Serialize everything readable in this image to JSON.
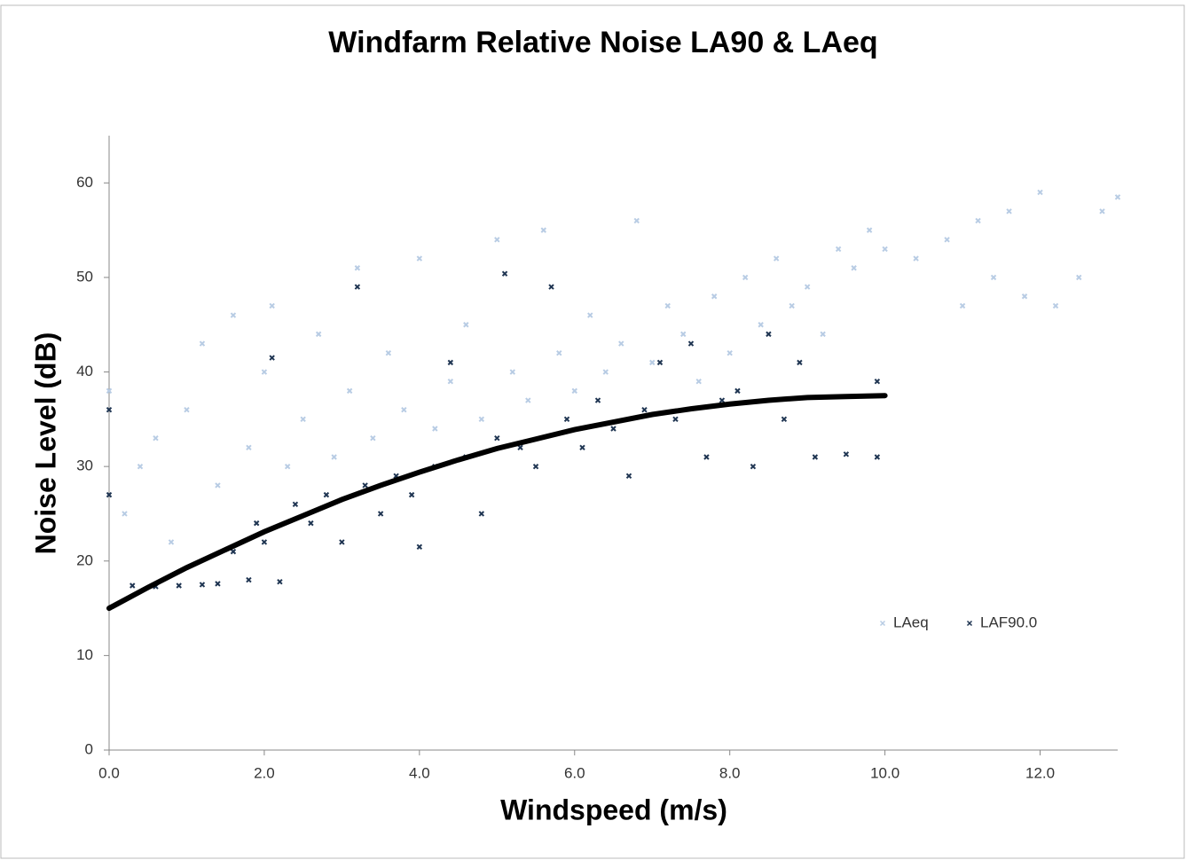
{
  "chart_data": {
    "type": "scatter",
    "title": "Windfarm Relative Noise LA90 & LAeq",
    "x_label": "Windspeed (m/s)",
    "y_label": "Noise Level (dB)",
    "xlim": [
      0,
      13
    ],
    "ylim": [
      0,
      65
    ],
    "xticks": [
      {
        "value": 0,
        "label": "0.0"
      },
      {
        "value": 2,
        "label": "2.0"
      },
      {
        "value": 4,
        "label": "4.0"
      },
      {
        "value": 6,
        "label": "6.0"
      },
      {
        "value": 8,
        "label": "8.0"
      },
      {
        "value": 10,
        "label": "10.0"
      },
      {
        "value": 12,
        "label": "12.0"
      }
    ],
    "yticks": [
      0,
      10,
      20,
      30,
      40,
      50,
      60
    ],
    "grid": false,
    "legend": "lower right",
    "series": [
      {
        "name": "LAeq",
        "type": "scatter",
        "color": "#b8cce4",
        "x": [
          0,
          0.2,
          0.4,
          0.6,
          0.8,
          1.0,
          1.2,
          1.4,
          1.6,
          1.8,
          2.0,
          2.1,
          2.3,
          2.5,
          2.7,
          2.9,
          3.1,
          3.2,
          3.4,
          3.6,
          3.8,
          4.0,
          4.2,
          4.4,
          4.6,
          4.8,
          5.0,
          5.2,
          5.4,
          5.6,
          5.8,
          6.0,
          6.2,
          6.4,
          6.6,
          6.8,
          7.0,
          7.2,
          7.4,
          7.6,
          7.8,
          8.0,
          8.2,
          8.4,
          8.6,
          8.8,
          9.0,
          9.2,
          9.4,
          9.6,
          9.8,
          10.0,
          10.4,
          10.8,
          11.0,
          11.2,
          11.4,
          11.6,
          11.8,
          12.0,
          12.2,
          12.5,
          12.8,
          13.0
        ],
        "values": [
          38,
          25,
          30,
          33,
          22,
          36,
          43,
          28,
          46,
          32,
          40,
          47,
          30,
          35,
          44,
          31,
          38,
          51,
          33,
          42,
          36,
          52,
          34,
          39,
          45,
          35,
          54,
          40,
          37,
          55,
          42,
          38,
          46,
          40,
          43,
          56,
          41,
          47,
          44,
          39,
          48,
          42,
          50,
          45,
          52,
          47,
          49,
          44,
          53,
          51,
          55,
          53,
          52,
          54,
          47,
          56,
          50,
          57,
          48,
          59,
          47,
          50,
          57,
          58.5
        ]
      },
      {
        "name": "LAF90.0",
        "type": "scatter",
        "color": "#1f3552",
        "x": [
          0,
          0,
          0.3,
          0.6,
          0.9,
          1.2,
          1.4,
          1.6,
          1.8,
          1.9,
          2.0,
          2.1,
          2.2,
          2.4,
          2.6,
          2.8,
          3.0,
          3.2,
          3.3,
          3.5,
          3.7,
          3.9,
          4.0,
          4.2,
          4.4,
          4.6,
          4.8,
          5.0,
          5.1,
          5.3,
          5.5,
          5.7,
          5.9,
          6.1,
          6.3,
          6.5,
          6.7,
          6.9,
          7.1,
          7.3,
          7.5,
          7.7,
          7.9,
          8.1,
          8.3,
          8.5,
          8.7,
          8.9,
          9.1,
          9.5,
          9.9,
          9.9
        ],
        "values": [
          36,
          27,
          17.4,
          17.3,
          17.4,
          17.5,
          17.6,
          21,
          18,
          24,
          22,
          41.5,
          17.8,
          26,
          24,
          27,
          22,
          49,
          28,
          25,
          29,
          27,
          21.5,
          30,
          41,
          31,
          25,
          33,
          50.4,
          32,
          30,
          49,
          35,
          32,
          37,
          34,
          29,
          36,
          41,
          35,
          43,
          31,
          37,
          38,
          30,
          44,
          35,
          41,
          31,
          31.3,
          31,
          39
        ]
      },
      {
        "type": "line",
        "color": "#000000",
        "x": [
          0,
          0.5,
          1,
          1.5,
          2,
          2.5,
          3,
          3.5,
          4,
          4.5,
          5,
          5.5,
          6,
          6.5,
          7,
          7.5,
          8,
          8.5,
          9,
          9.5,
          10
        ],
        "values": [
          15,
          17.2,
          19.3,
          21.2,
          23.1,
          24.8,
          26.5,
          28,
          29.4,
          30.7,
          31.9,
          32.9,
          33.9,
          34.7,
          35.5,
          36.1,
          36.6,
          37,
          37.3,
          37.4,
          37.5
        ]
      }
    ]
  }
}
